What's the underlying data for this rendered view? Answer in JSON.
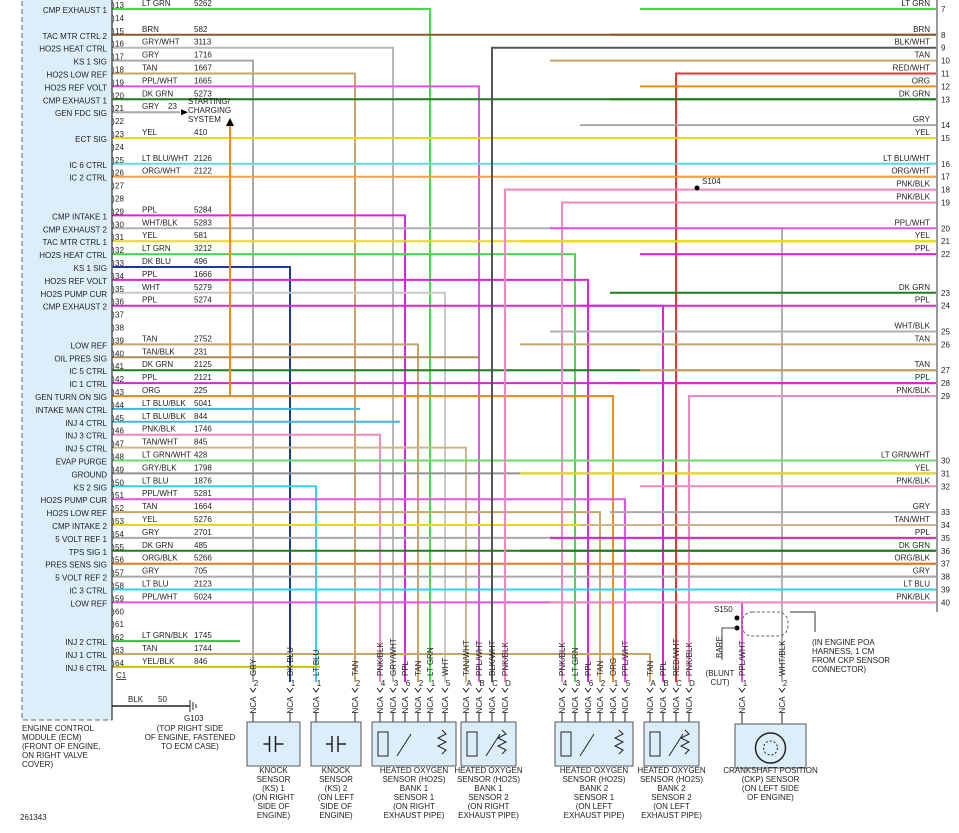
{
  "ecm": {
    "caption": [
      "ENGINE CONTROL",
      "MODULE (ECM)",
      "(FRONT OF ENGINE,",
      "ON RIGHT VALVE",
      "COVER)"
    ],
    "connector": "C1",
    "pins": [
      {
        "pin": "13",
        "label": "CMP EXHAUST 1",
        "wire": "LT GRN",
        "circuit": "5262",
        "stroke": "#4cd64c"
      },
      {
        "pin": "14"
      },
      {
        "pin": "15",
        "label": "TAC MTR CTRL 2",
        "wire": "BRN",
        "circuit": "582",
        "stroke": "#8b5a2b"
      },
      {
        "pin": "16",
        "label": "HO2S HEAT CTRL",
        "wire": "GRY/WHT",
        "circuit": "3113",
        "stroke": "#b8b8b8"
      },
      {
        "pin": "17",
        "label": "KS 1 SIG",
        "wire": "GRY",
        "circuit": "1716",
        "stroke": "#a8a8a8"
      },
      {
        "pin": "18",
        "label": "HO2S LOW REF",
        "wire": "TAN",
        "circuit": "1667",
        "stroke": "#c9a46a"
      },
      {
        "pin": "19",
        "label": "HO2S REF VOLT",
        "wire": "PPL/WHT",
        "circuit": "1665",
        "stroke": "#e055e0"
      },
      {
        "pin": "20",
        "label": "CMP EXHAUST 1",
        "wire": "DK GRN",
        "circuit": "5273",
        "stroke": "#1d7d1d"
      },
      {
        "pin": "21",
        "label": "GEN FDC SIG",
        "wire": "GRY",
        "stroke": "#a8a8a8"
      },
      {
        "pin": "22"
      },
      {
        "pin": "23",
        "label": "ECT SIG",
        "wire": "YEL",
        "circuit": "410",
        "stroke": "#e6dc00"
      },
      {
        "pin": "24"
      },
      {
        "pin": "25",
        "label": "IC 6 CTRL",
        "wire": "LT BLU/WHT",
        "circuit": "2126",
        "stroke": "#5fdde0"
      },
      {
        "pin": "26",
        "label": "IC 2 CTRL",
        "wire": "ORG/WHT",
        "circuit": "2122",
        "stroke": "#f2a24a"
      },
      {
        "pin": "27"
      },
      {
        "pin": "28"
      },
      {
        "pin": "29",
        "label": "CMP INTAKE 1",
        "wire": "PPL",
        "circuit": "5284",
        "stroke": "#e020e0"
      },
      {
        "pin": "30",
        "label": "CMP EXHAUST 2",
        "wire": "WHT/BLK",
        "circuit": "5283",
        "stroke": "#b0b0b0"
      },
      {
        "pin": "31",
        "label": "TAC MTR CTRL 1",
        "wire": "YEL",
        "circuit": "581",
        "stroke": "#e6dc00"
      },
      {
        "pin": "32",
        "label": "HO2S HEAT CTRL",
        "wire": "LT GRN",
        "circuit": "3212",
        "stroke": "#4cd64c"
      },
      {
        "pin": "33",
        "label": "KS 1 SIG",
        "wire": "DK BLU",
        "circuit": "496",
        "stroke": "#1a3aa0"
      },
      {
        "pin": "34",
        "label": "HO2S REF VOLT",
        "wire": "PPL",
        "circuit": "1666",
        "stroke": "#e020e0"
      },
      {
        "pin": "35",
        "label": "HO2S PUMP CUR",
        "wire": "WHT",
        "circuit": "5279",
        "stroke": "#c8c8c8"
      },
      {
        "pin": "36",
        "label": "CMP EXHAUST 2",
        "wire": "PPL",
        "circuit": "5274",
        "stroke": "#e020e0"
      },
      {
        "pin": "37"
      },
      {
        "pin": "38"
      },
      {
        "pin": "39",
        "label": "LOW REF",
        "wire": "TAN",
        "circuit": "2752",
        "stroke": "#c9a46a"
      },
      {
        "pin": "40",
        "label": "OIL PRES SIG",
        "wire": "TAN/BLK",
        "circuit": "231",
        "stroke": "#a88a5a"
      },
      {
        "pin": "41",
        "label": "IC 5 CTRL",
        "wire": "DK GRN",
        "circuit": "2125",
        "stroke": "#1d7d1d"
      },
      {
        "pin": "42",
        "label": "IC 1 CTRL",
        "wire": "PPL",
        "circuit": "2121",
        "stroke": "#e020e0"
      },
      {
        "pin": "43",
        "label": "GEN TURN ON SIG",
        "wire": "ORG",
        "circuit": "225",
        "stroke": "#f08a20"
      },
      {
        "pin": "44",
        "label": "INTAKE MAN CTRL",
        "wire": "LT BLU/BLK",
        "circuit": "5041",
        "stroke": "#3fb8dd"
      },
      {
        "pin": "45",
        "label": "INJ 4 CTRL",
        "wire": "LT BLU/BLK",
        "circuit": "844",
        "stroke": "#3fb8dd"
      },
      {
        "pin": "46",
        "label": "INJ 3 CTRL",
        "wire": "PNK/BLK",
        "circuit": "1746",
        "stroke": "#ee88c0"
      },
      {
        "pin": "47",
        "label": "INJ 5 CTRL",
        "wire": "TAN/WHT",
        "circuit": "845",
        "stroke": "#cdb48c"
      },
      {
        "pin": "48",
        "label": "EVAP PURGE",
        "wire": "LT GRN/WHT",
        "circuit": "428",
        "stroke": "#66dd66"
      },
      {
        "pin": "49",
        "label": "GROUND",
        "wire": "GRY/BLK",
        "circuit": "1798",
        "stroke": "#909090"
      },
      {
        "pin": "50",
        "label": "KS 2 SIG",
        "wire": "LT BLU",
        "circuit": "1876",
        "stroke": "#33d0ee"
      },
      {
        "pin": "51",
        "label": "HO2S PUMP CUR",
        "wire": "PPL/WHT",
        "circuit": "5281",
        "stroke": "#e055e0"
      },
      {
        "pin": "52",
        "label": "HO2S LOW REF",
        "wire": "TAN",
        "circuit": "1664",
        "stroke": "#c9a46a"
      },
      {
        "pin": "53",
        "label": "CMP INTAKE 2",
        "wire": "YEL",
        "circuit": "5276",
        "stroke": "#e6dc00"
      },
      {
        "pin": "54",
        "label": "5 VOLT REF 1",
        "wire": "GRY",
        "circuit": "2701",
        "stroke": "#a8a8a8"
      },
      {
        "pin": "55",
        "label": "TPS SIG 1",
        "wire": "DK GRN",
        "circuit": "485",
        "stroke": "#1d7d1d"
      },
      {
        "pin": "56",
        "label": "PRES SENS SIG",
        "wire": "ORG/BLK",
        "circuit": "5266",
        "stroke": "#e07a28"
      },
      {
        "pin": "57",
        "label": "5 VOLT REF 2",
        "wire": "GRY",
        "circuit": "705",
        "stroke": "#a8a8a8"
      },
      {
        "pin": "58",
        "label": "IC 3 CTRL",
        "wire": "LT BLU",
        "circuit": "2123",
        "stroke": "#33d0ee"
      },
      {
        "pin": "59",
        "label": "LOW REF",
        "wire": "PPL/WHT",
        "circuit": "5024",
        "stroke": "#e055e0"
      },
      {
        "pin": "60"
      },
      {
        "pin": "61"
      },
      {
        "pin": "62",
        "label": "INJ 2 CTRL",
        "wire": "LT GRN/BLK",
        "circuit": "1745",
        "stroke": "#3fb83f"
      },
      {
        "pin": "63",
        "label": "INJ 1 CTRL",
        "wire": "TAN",
        "circuit": "1744",
        "stroke": "#c9a46a"
      },
      {
        "pin": "64",
        "label": "INJ 6 CTRL",
        "wire": "YEL/BLK",
        "circuit": "846",
        "stroke": "#c8c000"
      }
    ]
  },
  "starting": {
    "circuit": "23",
    "label": [
      "STARTING/",
      "CHARGING",
      "SYSTEM"
    ]
  },
  "ground": {
    "wire": "BLK",
    "circuit": "50",
    "name": "G103",
    "caption": [
      "(TOP RIGHT SIDE",
      "OF ENGINE, FASTENED",
      "TO ECM CASE)"
    ]
  },
  "harness": {
    "pins": [
      {
        "pin": "7",
        "wire": "LT GRN",
        "stroke": "#4cd64c"
      },
      {
        "pin": "8",
        "wire": "BRN",
        "stroke": "#8b5a2b"
      },
      {
        "pin": "9",
        "wire": "BLK/WHT",
        "stroke": "#555555"
      },
      {
        "pin": "10",
        "wire": "TAN",
        "stroke": "#c9a46a"
      },
      {
        "pin": "11",
        "wire": "RED/WHT",
        "stroke": "#ee3333"
      },
      {
        "pin": "12",
        "wire": "ORG",
        "stroke": "#f08a20"
      },
      {
        "pin": "13",
        "wire": "DK GRN",
        "stroke": "#1d7d1d"
      },
      {
        "pin": "14",
        "wire": "GRY",
        "stroke": "#a8a8a8"
      },
      {
        "pin": "15",
        "wire": "YEL",
        "stroke": "#e6dc00"
      },
      {
        "pin": "16",
        "wire": "LT BLU/WHT",
        "stroke": "#5fdde0"
      },
      {
        "pin": "17",
        "wire": "ORG/WHT",
        "stroke": "#f2a24a"
      },
      {
        "pin": "18",
        "wire": "PNK/BLK",
        "stroke": "#ee88c0"
      },
      {
        "pin": "19",
        "wire": "PNK/BLK",
        "stroke": "#ee88c0"
      },
      {
        "pin": "20",
        "wire": "PPL/WHT",
        "stroke": "#e055e0"
      },
      {
        "pin": "21",
        "wire": "YEL",
        "stroke": "#e6dc00"
      },
      {
        "pin": "22",
        "wire": "PPL",
        "stroke": "#e020e0"
      },
      {
        "pin": "23",
        "wire": "DK GRN",
        "stroke": "#1d7d1d"
      },
      {
        "pin": "24",
        "wire": "PPL",
        "stroke": "#e020e0"
      },
      {
        "pin": "25",
        "wire": "WHT/BLK",
        "stroke": "#b0b0b0"
      },
      {
        "pin": "26",
        "wire": "TAN",
        "stroke": "#c9a46a"
      },
      {
        "pin": "27",
        "wire": "TAN",
        "stroke": "#c9a46a"
      },
      {
        "pin": "28",
        "wire": "PPL",
        "stroke": "#e020e0"
      },
      {
        "pin": "29",
        "wire": "PNK/BLK",
        "stroke": "#ee88c0"
      },
      {
        "pin": "30",
        "wire": "LT GRN/WHT",
        "stroke": "#66dd66"
      },
      {
        "pin": "31",
        "wire": "YEL",
        "stroke": "#e6dc00"
      },
      {
        "pin": "32",
        "wire": "PNK/BLK",
        "stroke": "#ee88c0"
      },
      {
        "pin": "33",
        "wire": "GRY",
        "stroke": "#a8a8a8"
      },
      {
        "pin": "34",
        "wire": "TAN/WHT",
        "stroke": "#cdb48c"
      },
      {
        "pin": "35",
        "wire": "PPL",
        "stroke": "#e020e0"
      },
      {
        "pin": "36",
        "wire": "DK GRN",
        "stroke": "#1d7d1d"
      },
      {
        "pin": "37",
        "wire": "ORG/BLK",
        "stroke": "#e07a28"
      },
      {
        "pin": "38",
        "wire": "GRY",
        "stroke": "#a8a8a8"
      },
      {
        "pin": "39",
        "wire": "LT BLU",
        "stroke": "#33d0ee"
      },
      {
        "pin": "40",
        "wire": "PNK/BLK",
        "stroke": "#ee88c0"
      }
    ]
  },
  "splices": {
    "s104": "S104",
    "s150": "S150",
    "s150_note": [
      "(IN ENGINE POA",
      "HARNESS, 1 CM",
      "FROM CKP SENSOR",
      "CONNECTOR)"
    ],
    "drain": "BARE",
    "drain_note": [
      "(BLUNT",
      "CUT)"
    ]
  },
  "components": [
    {
      "connector": "NCA",
      "caption": [
        "KNOCK",
        "SENSOR",
        "(KS) 1",
        "(ON RIGHT",
        "SIDE OF",
        "ENGINE)"
      ],
      "pins": [
        {
          "num": "2",
          "wire": "GRY"
        },
        {
          "num": "1",
          "wire": "DK BLU"
        }
      ]
    },
    {
      "connector": "NCA",
      "caption": [
        "KNOCK",
        "SENSOR",
        "(KS) 2",
        "(ON LEFT",
        "SIDE OF",
        "ENGINE)"
      ],
      "pins": [
        {
          "num": "1",
          "wire": "LT BLU"
        },
        {
          "num": "2",
          "wire": "TAN"
        }
      ]
    },
    {
      "connector": "NCA",
      "caption": [
        "HEATED OXYGEN",
        "SENSOR (HO2S)",
        "BANK 1",
        "SENSOR 1",
        "(ON RIGHT",
        "EXHAUST PIPE)"
      ],
      "pins": [
        {
          "num": "4",
          "wire": "PNK/BLK"
        },
        {
          "num": "3",
          "wire": "GRY/WHT"
        },
        {
          "num": "6",
          "wire": "PPL"
        },
        {
          "num": "2",
          "wire": "TAN"
        },
        {
          "num": "1",
          "wire": "LT GRN"
        },
        {
          "num": "5",
          "wire": "WHT"
        }
      ]
    },
    {
      "connector": "NCA",
      "caption": [
        "HEATED OXYGEN",
        "SENSOR (HO2S)",
        "BANK 1",
        "SENSOR 2",
        "(ON RIGHT",
        "EXHAUST PIPE)"
      ],
      "pins": [
        {
          "num": "A",
          "wire": "TAN/WHT"
        },
        {
          "num": "B",
          "wire": "PPL/WHT"
        },
        {
          "num": "C",
          "wire": "BLK/WHT"
        },
        {
          "num": "D",
          "wire": "PNK/BLK"
        }
      ]
    },
    {
      "connector": "NCA",
      "caption": [
        "HEATED OXYGEN",
        "SENSOR (HO2S)",
        "BANK 2",
        "SENSOR 1",
        "(ON LEFT",
        "EXHAUST PIPE)"
      ],
      "pins": [
        {
          "num": "4",
          "wire": "PNK/BLK"
        },
        {
          "num": "3",
          "wire": "LT GRN"
        },
        {
          "num": "6",
          "wire": "PPL"
        },
        {
          "num": "2",
          "wire": "TAN"
        },
        {
          "num": "1",
          "wire": "ORG"
        },
        {
          "num": "5",
          "wire": "PPL/WHT"
        }
      ]
    },
    {
      "connector": "NCA",
      "caption": [
        "HEATED OXYGEN",
        "SENSOR (HO2S)",
        "BANK 2",
        "SENSOR 2",
        "(ON LEFT",
        "EXHAUST PIPE)"
      ],
      "pins": [
        {
          "num": "A",
          "wire": "TAN"
        },
        {
          "num": "B",
          "wire": "PPL"
        },
        {
          "num": "C",
          "wire": "RED/WHT"
        },
        {
          "num": "D",
          "wire": "PNK/BLK"
        }
      ]
    },
    {
      "connector": "NCA",
      "caption": [
        "CRANKSHAFT POSITION",
        "(CKP) SENSOR",
        "(ON LEFT SIDE",
        "OF ENGINE)"
      ],
      "pins": [
        {
          "num": "1",
          "wire": "PPL/WHT"
        },
        {
          "num": "2",
          "wire": "WHT/BLK"
        }
      ]
    }
  ],
  "figure_id": "261343"
}
